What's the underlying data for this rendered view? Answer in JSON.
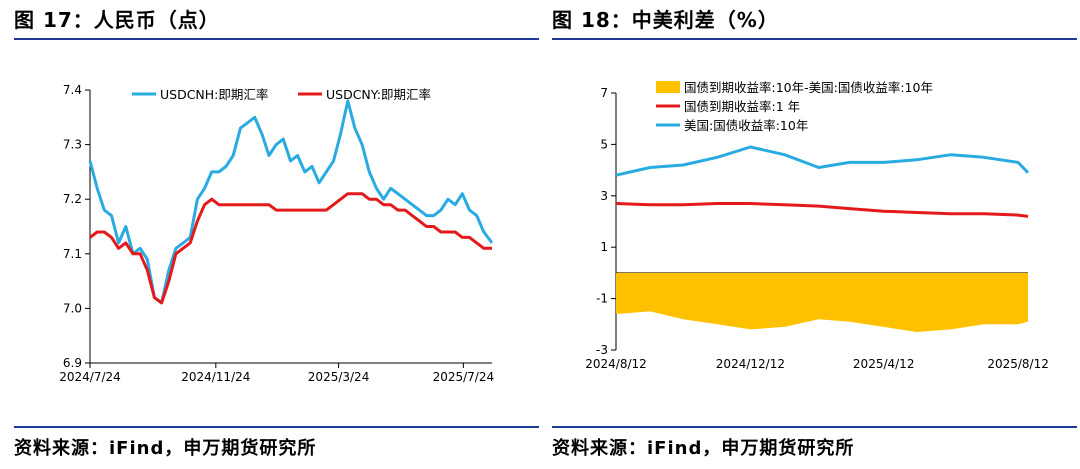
{
  "panels": {
    "left": {
      "title": "图 17：人民币（点）",
      "source": "资料来源：iFind，申万期货研究所"
    },
    "right": {
      "title": "图 18：中美利差（%）",
      "source": "资料来源：iFind，申万期货研究所"
    }
  },
  "chart_data": [
    {
      "type": "line",
      "title": "",
      "xlabel": "",
      "ylabel": "",
      "x_ticks": [
        "2024/7/24",
        "2024/11/24",
        "2025/3/24",
        "2025/7/24"
      ],
      "x_tick_dates": [
        "2024-07-24",
        "2024-11-24",
        "2025-03-24",
        "2025-07-24"
      ],
      "x_range": [
        "2024-07-24",
        "2025-08-21"
      ],
      "y_ticks": [
        6.9,
        7.0,
        7.1,
        7.2,
        7.3,
        7.4
      ],
      "ylim": [
        6.9,
        7.4
      ],
      "grid": false,
      "legend_position": "top",
      "colors": {
        "USDCNH": "#29abe2",
        "USDCNY": "#e3191b"
      },
      "series": [
        {
          "name": "USDCNH:即期汇率",
          "x": [
            "2024-07-24",
            "2024-07-31",
            "2024-08-07",
            "2024-08-14",
            "2024-08-21",
            "2024-08-28",
            "2024-09-04",
            "2024-09-11",
            "2024-09-18",
            "2024-09-25",
            "2024-10-02",
            "2024-10-09",
            "2024-10-16",
            "2024-10-23",
            "2024-10-30",
            "2024-11-06",
            "2024-11-13",
            "2024-11-20",
            "2024-11-27",
            "2024-12-04",
            "2024-12-11",
            "2024-12-18",
            "2024-12-25",
            "2025-01-01",
            "2025-01-08",
            "2025-01-15",
            "2025-01-22",
            "2025-01-29",
            "2025-02-05",
            "2025-02-12",
            "2025-02-19",
            "2025-02-26",
            "2025-03-05",
            "2025-03-12",
            "2025-03-19",
            "2025-03-26",
            "2025-04-02",
            "2025-04-09",
            "2025-04-16",
            "2025-04-23",
            "2025-04-30",
            "2025-05-07",
            "2025-05-14",
            "2025-05-21",
            "2025-05-28",
            "2025-06-04",
            "2025-06-11",
            "2025-06-18",
            "2025-06-25",
            "2025-07-02",
            "2025-07-09",
            "2025-07-16",
            "2025-07-23",
            "2025-07-30",
            "2025-08-06",
            "2025-08-13",
            "2025-08-21"
          ],
          "values": [
            7.27,
            7.22,
            7.18,
            7.17,
            7.12,
            7.15,
            7.1,
            7.11,
            7.09,
            7.02,
            7.01,
            7.07,
            7.11,
            7.12,
            7.13,
            7.2,
            7.22,
            7.25,
            7.25,
            7.26,
            7.28,
            7.33,
            7.34,
            7.35,
            7.32,
            7.28,
            7.3,
            7.31,
            7.27,
            7.28,
            7.25,
            7.26,
            7.23,
            7.25,
            7.27,
            7.32,
            7.38,
            7.33,
            7.3,
            7.25,
            7.22,
            7.2,
            7.22,
            7.21,
            7.2,
            7.19,
            7.18,
            7.17,
            7.17,
            7.18,
            7.2,
            7.19,
            7.21,
            7.18,
            7.17,
            7.14,
            7.12
          ]
        },
        {
          "name": "USDCNY:即期汇率",
          "x": [
            "2024-07-24",
            "2024-07-31",
            "2024-08-07",
            "2024-08-14",
            "2024-08-21",
            "2024-08-28",
            "2024-09-04",
            "2024-09-11",
            "2024-09-18",
            "2024-09-25",
            "2024-10-02",
            "2024-10-09",
            "2024-10-16",
            "2024-10-23",
            "2024-10-30",
            "2024-11-06",
            "2024-11-13",
            "2024-11-20",
            "2024-11-27",
            "2024-12-04",
            "2024-12-11",
            "2024-12-18",
            "2024-12-25",
            "2025-01-01",
            "2025-01-08",
            "2025-01-15",
            "2025-01-22",
            "2025-01-29",
            "2025-02-05",
            "2025-02-12",
            "2025-02-19",
            "2025-02-26",
            "2025-03-05",
            "2025-03-12",
            "2025-03-19",
            "2025-03-26",
            "2025-04-02",
            "2025-04-09",
            "2025-04-16",
            "2025-04-23",
            "2025-04-30",
            "2025-05-07",
            "2025-05-14",
            "2025-05-21",
            "2025-05-28",
            "2025-06-04",
            "2025-06-11",
            "2025-06-18",
            "2025-06-25",
            "2025-07-02",
            "2025-07-09",
            "2025-07-16",
            "2025-07-23",
            "2025-07-30",
            "2025-08-06",
            "2025-08-13",
            "2025-08-21"
          ],
          "values": [
            7.13,
            7.14,
            7.14,
            7.13,
            7.11,
            7.12,
            7.1,
            7.1,
            7.07,
            7.02,
            7.01,
            7.05,
            7.1,
            7.11,
            7.12,
            7.16,
            7.19,
            7.2,
            7.19,
            7.19,
            7.19,
            7.19,
            7.19,
            7.19,
            7.19,
            7.19,
            7.18,
            7.18,
            7.18,
            7.18,
            7.18,
            7.18,
            7.18,
            7.18,
            7.19,
            7.2,
            7.21,
            7.21,
            7.21,
            7.2,
            7.2,
            7.19,
            7.19,
            7.18,
            7.18,
            7.17,
            7.16,
            7.15,
            7.15,
            7.14,
            7.14,
            7.14,
            7.13,
            7.13,
            7.12,
            7.11,
            7.11
          ]
        }
      ]
    },
    {
      "type": "area",
      "title": "",
      "xlabel": "",
      "ylabel": "",
      "x_ticks": [
        "2024/8/12",
        "2024/12/12",
        "2025/4/12",
        "2025/8/12"
      ],
      "x_tick_dates": [
        "2024-08-12",
        "2024-12-12",
        "2025-04-12",
        "2025-08-12"
      ],
      "x_range": [
        "2024-08-12",
        "2025-08-21"
      ],
      "y_ticks": [
        7,
        5,
        3,
        1,
        -1,
        -3
      ],
      "ylim": [
        -3,
        7
      ],
      "grid": false,
      "legend_position": "top",
      "colors": {
        "spread": "#ffc000",
        "cn": "#e3191b",
        "us": "#29abe2"
      },
      "series": [
        {
          "name": "国债到期收益率:10年-美国:国债收益率:10年",
          "style": "area",
          "x": [
            "2024-08-12",
            "2024-09-12",
            "2024-10-12",
            "2024-11-12",
            "2024-12-12",
            "2025-01-12",
            "2025-02-12",
            "2025-03-12",
            "2025-04-12",
            "2025-05-12",
            "2025-06-12",
            "2025-07-12",
            "2025-08-12",
            "2025-08-21"
          ],
          "values": [
            -1.6,
            -1.5,
            -1.8,
            -2.0,
            -2.2,
            -2.1,
            -1.8,
            -1.9,
            -2.1,
            -2.3,
            -2.2,
            -2.0,
            -2.0,
            -1.9
          ]
        },
        {
          "name": "国债到期收益率:1 年",
          "style": "line",
          "x": [
            "2024-08-12",
            "2024-09-12",
            "2024-10-12",
            "2024-11-12",
            "2024-12-12",
            "2025-01-12",
            "2025-02-12",
            "2025-03-12",
            "2025-04-12",
            "2025-05-12",
            "2025-06-12",
            "2025-07-12",
            "2025-08-12",
            "2025-08-21"
          ],
          "values": [
            2.7,
            2.65,
            2.65,
            2.7,
            2.7,
            2.65,
            2.6,
            2.5,
            2.4,
            2.35,
            2.3,
            2.3,
            2.25,
            2.2
          ]
        },
        {
          "name": "美国:国债收益率:10年",
          "style": "line",
          "x": [
            "2024-08-12",
            "2024-09-12",
            "2024-10-12",
            "2024-11-12",
            "2024-12-12",
            "2025-01-12",
            "2025-02-12",
            "2025-03-12",
            "2025-04-12",
            "2025-05-12",
            "2025-06-12",
            "2025-07-12",
            "2025-08-12",
            "2025-08-21"
          ],
          "values": [
            3.8,
            4.1,
            4.2,
            4.5,
            4.9,
            4.6,
            4.1,
            4.3,
            4.3,
            4.4,
            4.6,
            4.5,
            4.3,
            3.9
          ]
        }
      ]
    }
  ]
}
